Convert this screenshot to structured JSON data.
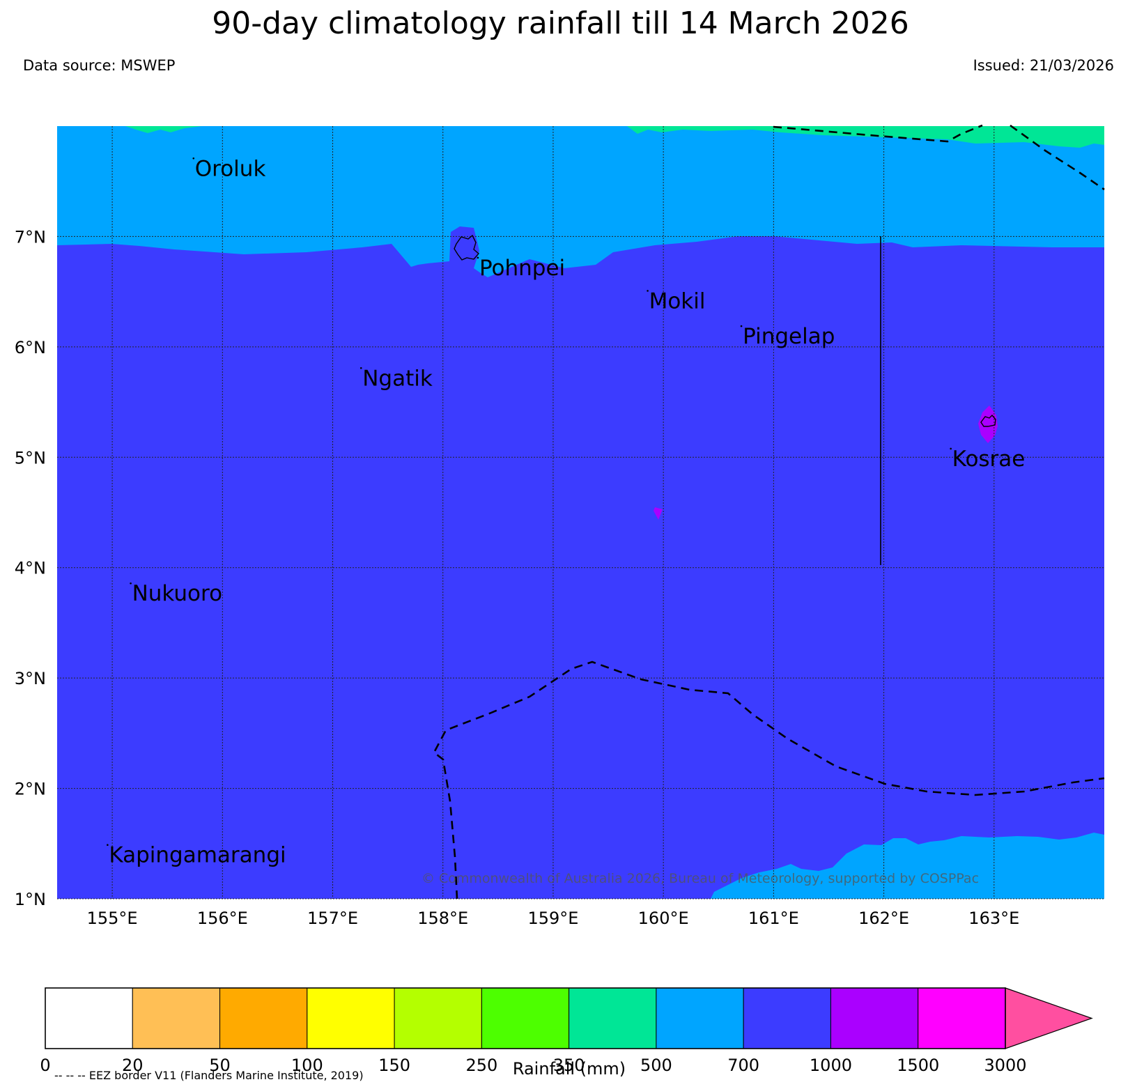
{
  "header": {
    "title": "90-day climatology rainfall till 14 March 2026",
    "data_source": "Data source: MSWEP",
    "issued": "Issued: 21/03/2026"
  },
  "map": {
    "lon_range": [
      154.5,
      164.0
    ],
    "lat_range": [
      1.0,
      8.0
    ],
    "lon_ticks": [
      "155°E",
      "156°E",
      "157°E",
      "158°E",
      "159°E",
      "160°E",
      "161°E",
      "162°E",
      "163°E"
    ],
    "lat_ticks": [
      "1°N",
      "2°N",
      "3°N",
      "4°N",
      "5°N",
      "6°N",
      "7°N"
    ],
    "grid": true,
    "places": [
      {
        "name": "Oroluk",
        "lon": 155.75,
        "lat": 7.55
      },
      {
        "name": "Pohnpei",
        "lon": 158.33,
        "lat": 6.65
      },
      {
        "name": "Mokil",
        "lon": 159.87,
        "lat": 6.35
      },
      {
        "name": "Pingelap",
        "lon": 160.72,
        "lat": 6.03
      },
      {
        "name": "Ngatik",
        "lon": 157.27,
        "lat": 5.65
      },
      {
        "name": "Kosrae",
        "lon": 162.62,
        "lat": 4.92
      },
      {
        "name": "Nukuoro",
        "lon": 155.18,
        "lat": 3.7
      },
      {
        "name": "Kapingamarangi",
        "lon": 154.97,
        "lat": 1.33
      }
    ],
    "copyright": "© Commonwealth of Australia 2026, Bureau of Meteorology, supported by COSPPac"
  },
  "legend": {
    "levels": [
      "0",
      "20",
      "50",
      "100",
      "150",
      "250",
      "350",
      "500",
      "700",
      "1000",
      "1500",
      "3000"
    ],
    "colors": [
      "#ffffff",
      "#ffbf55",
      "#ffaa00",
      "#ffff00",
      "#b4ff00",
      "#4dff00",
      "#00e696",
      "#00a5ff",
      "#3c3cff",
      "#aa00ff",
      "#ff00ff",
      "#ff4fa0"
    ],
    "label": "Rainfall (mm)",
    "eez_note": "-- -- -- EEZ border V11 (Flanders Marine Institute, 2019)"
  }
}
